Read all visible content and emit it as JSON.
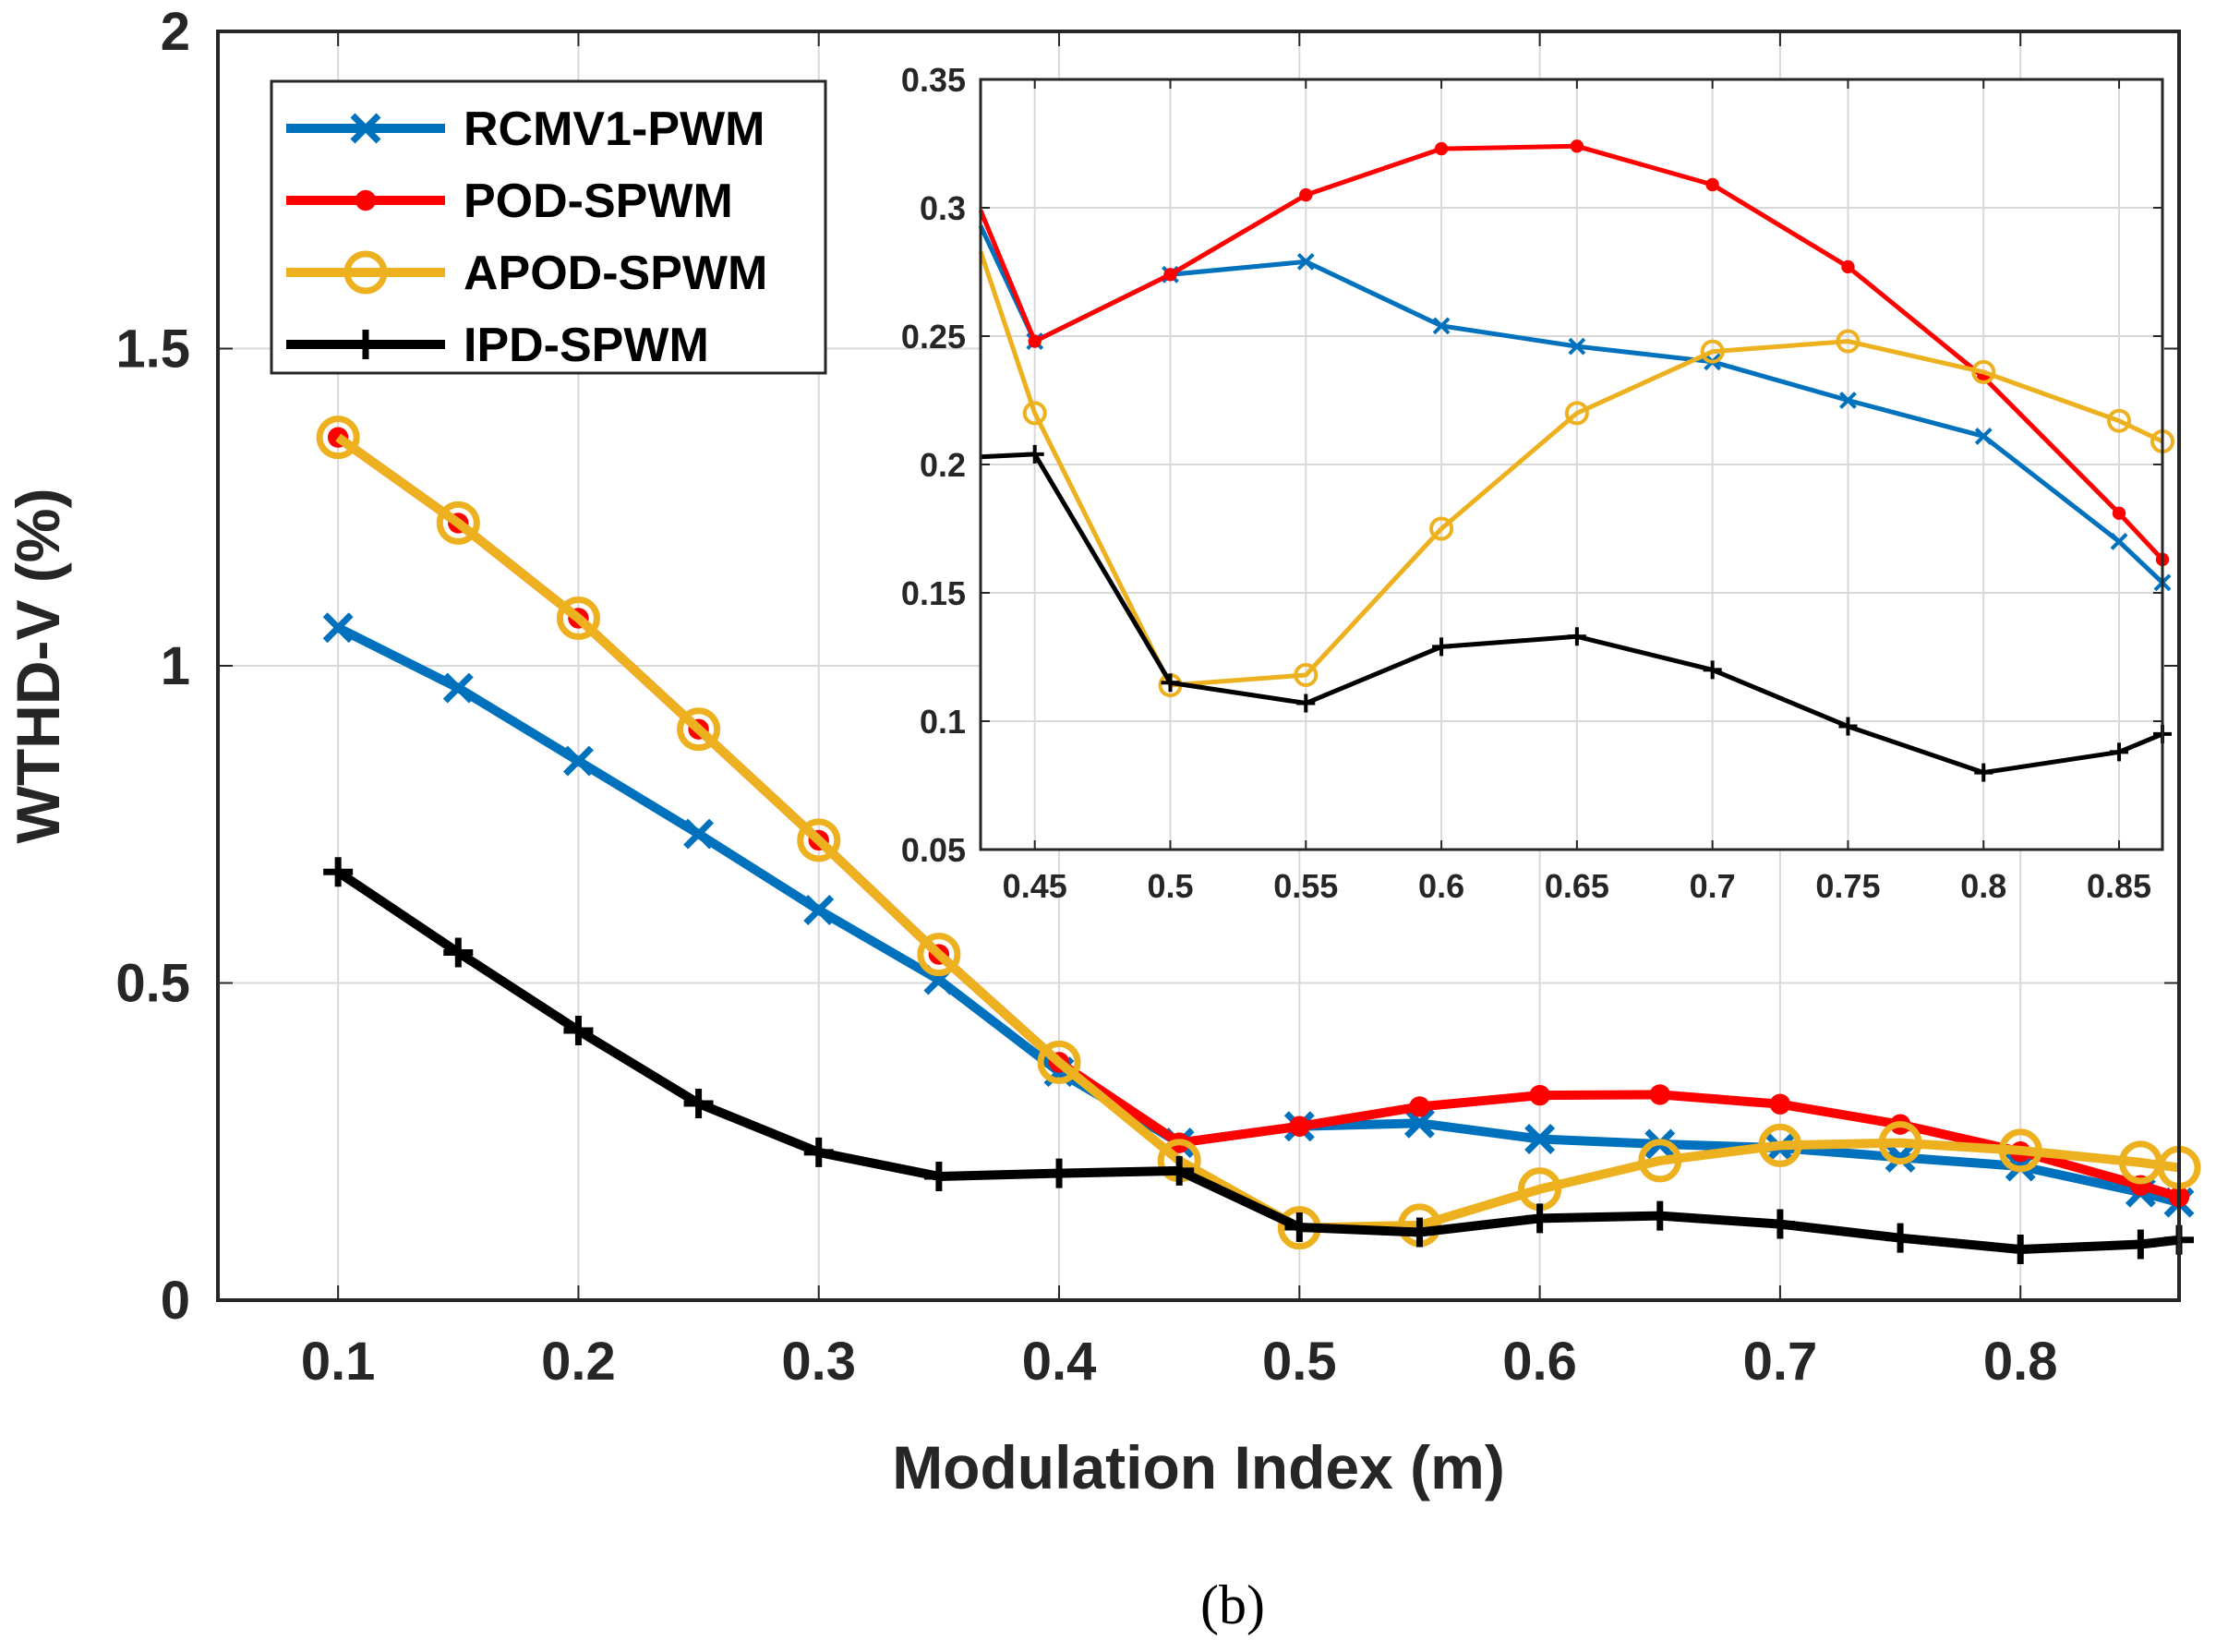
{
  "caption": "(b)",
  "chart_data": [
    {
      "type": "line",
      "xlabel": "Modulation Index (m)",
      "ylabel": "WTHD-V (%)",
      "xlim": [
        0.05,
        0.866
      ],
      "ylim": [
        0,
        2
      ],
      "xticks": [
        0.1,
        0.2,
        0.3,
        0.4,
        0.5,
        0.6,
        0.7,
        0.8
      ],
      "xtick_labels": [
        "0.1",
        "0.2",
        "0.3",
        "0.4",
        "0.5",
        "0.6",
        "0.7",
        "0.8"
      ],
      "yticks": [
        0,
        0.5,
        1,
        1.5,
        2
      ],
      "ytick_labels": [
        "0",
        "0.5",
        "1",
        "1.5",
        "2"
      ],
      "grid": true,
      "legend_position": "top-left",
      "x": [
        0.1,
        0.15,
        0.2,
        0.25,
        0.3,
        0.35,
        0.4,
        0.45,
        0.5,
        0.55,
        0.6,
        0.65,
        0.7,
        0.75,
        0.8,
        0.85,
        0.866
      ],
      "series": [
        {
          "name": "RCMV1-PWM",
          "color": "#0072bd",
          "marker": "x",
          "values": [
            1.06,
            0.965,
            0.85,
            0.735,
            0.615,
            0.505,
            0.36,
            0.248,
            0.274,
            0.279,
            0.254,
            0.246,
            0.24,
            0.225,
            0.211,
            0.17,
            0.154
          ]
        },
        {
          "name": "POD-SPWM",
          "color": "#ff0000",
          "marker": "dot",
          "values": [
            1.36,
            1.225,
            1.075,
            0.9,
            0.725,
            0.545,
            0.375,
            0.248,
            0.274,
            0.305,
            0.323,
            0.324,
            0.309,
            0.277,
            0.234,
            0.181,
            0.163
          ]
        },
        {
          "name": "APOD-SPWM",
          "color": "#edb120",
          "marker": "circle",
          "values": [
            1.36,
            1.225,
            1.075,
            0.9,
            0.725,
            0.545,
            0.375,
            0.22,
            0.114,
            0.118,
            0.175,
            0.22,
            0.244,
            0.248,
            0.236,
            0.217,
            0.209
          ]
        },
        {
          "name": "IPD-SPWM",
          "color": "#000000",
          "marker": "plus",
          "values": [
            0.675,
            0.548,
            0.425,
            0.31,
            0.233,
            0.195,
            0.2,
            0.204,
            0.115,
            0.107,
            0.129,
            0.133,
            0.12,
            0.098,
            0.08,
            0.088,
            0.095
          ]
        }
      ]
    },
    {
      "type": "line",
      "role": "inset",
      "xlim": [
        0.43,
        0.866
      ],
      "ylim": [
        0.05,
        0.35
      ],
      "xticks": [
        0.45,
        0.5,
        0.55,
        0.6,
        0.65,
        0.7,
        0.75,
        0.8,
        0.85
      ],
      "xtick_labels": [
        "0.45",
        "0.5",
        "0.55",
        "0.6",
        "0.65",
        "0.7",
        "0.75",
        "0.8",
        "0.85"
      ],
      "yticks": [
        0.05,
        0.1,
        0.15,
        0.2,
        0.25,
        0.3,
        0.35
      ],
      "ytick_labels": [
        "0.05",
        "0.1",
        "0.15",
        "0.2",
        "0.25",
        "0.3",
        "0.35"
      ],
      "grid": true,
      "x": [
        0.43,
        0.45,
        0.5,
        0.55,
        0.6,
        0.65,
        0.7,
        0.75,
        0.8,
        0.85,
        0.866
      ],
      "series": [
        {
          "name": "RCMV1-PWM",
          "color": "#0072bd",
          "marker": "x",
          "values": [
            0.293,
            0.248,
            0.274,
            0.279,
            0.254,
            0.246,
            0.24,
            0.225,
            0.211,
            0.17,
            0.154
          ]
        },
        {
          "name": "POD-SPWM",
          "color": "#ff0000",
          "marker": "dot",
          "values": [
            0.299,
            0.248,
            0.274,
            0.305,
            0.323,
            0.324,
            0.309,
            0.277,
            0.234,
            0.181,
            0.163
          ]
        },
        {
          "name": "APOD-SPWM",
          "color": "#edb120",
          "marker": "circle",
          "values": [
            0.283,
            0.22,
            0.114,
            0.118,
            0.175,
            0.22,
            0.244,
            0.248,
            0.236,
            0.217,
            0.209
          ]
        },
        {
          "name": "IPD-SPWM",
          "color": "#000000",
          "marker": "plus",
          "values": [
            0.203,
            0.204,
            0.115,
            0.107,
            0.129,
            0.133,
            0.12,
            0.098,
            0.08,
            0.088,
            0.095
          ]
        }
      ]
    }
  ]
}
